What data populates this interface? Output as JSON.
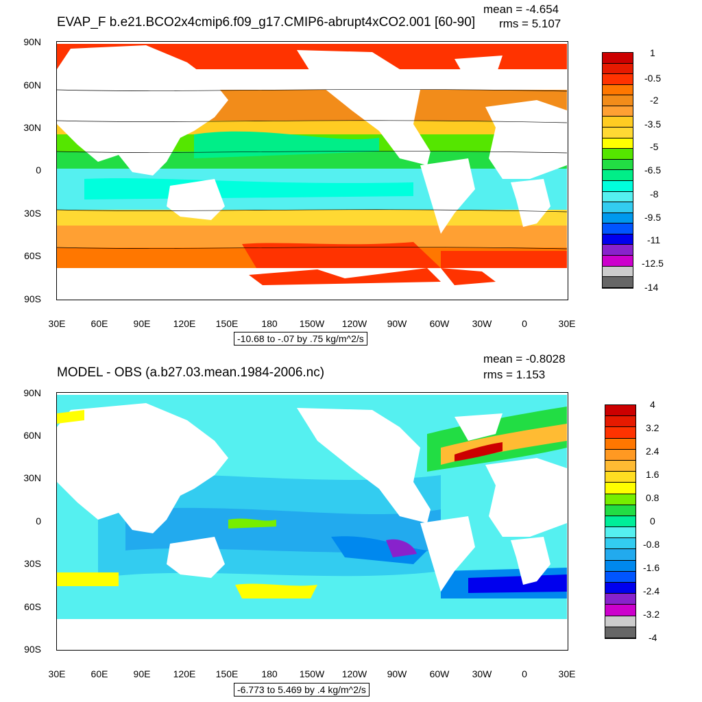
{
  "panels": [
    {
      "title": "EVAP_F b.e21.BCO2x4cmip6.f09_g17.CMIP6-abrupt4xCO2.001 [60-90]",
      "mean": "mean = -4.654",
      "rms": "rms = 5.107",
      "range_label": "-10.68 to -.07 by .75 kg/m^2/s",
      "y_labels": [
        "90N",
        "60N",
        "30N",
        "0",
        "30S",
        "60S",
        "90S"
      ],
      "x_labels": [
        "30E",
        "60E",
        "90E",
        "120E",
        "150E",
        "180",
        "150W",
        "120W",
        "90W",
        "60W",
        "30W",
        "0",
        "30E"
      ],
      "colorbar": {
        "labels": [
          "1",
          "-0.5",
          "-2",
          "-3.5",
          "-5",
          "-6.5",
          "-8",
          "-9.5",
          "-11",
          "-12.5",
          "-14"
        ],
        "colors": [
          "#cc0000",
          "#e61a00",
          "#ff3300",
          "#ff7700",
          "#f28c1a",
          "#ffa033",
          "#ffcc22",
          "#ffd933",
          "#ffff00",
          "#55e600",
          "#22dd44",
          "#00ee88",
          "#00ffdd",
          "#55f0f0",
          "#33ccf0",
          "#0099ee",
          "#0055ff",
          "#0000ee",
          "#8822cc",
          "#cc00cc",
          "#cccccc",
          "#666666"
        ]
      }
    },
    {
      "title": "MODEL - OBS (a.b27.03.mean.1984-2006.nc)",
      "mean": "mean = -0.8028",
      "rms": "rms = 1.153",
      "range_label": "-6.773 to 5.469 by .4 kg/m^2/s",
      "y_labels": [
        "90N",
        "60N",
        "30N",
        "0",
        "30S",
        "60S",
        "90S"
      ],
      "x_labels": [
        "30E",
        "60E",
        "90E",
        "120E",
        "150E",
        "180",
        "150W",
        "120W",
        "90W",
        "60W",
        "30W",
        "0",
        "30E"
      ],
      "colorbar": {
        "labels": [
          "4",
          "3.2",
          "2.4",
          "1.6",
          "0.8",
          "0",
          "-0.8",
          "-1.6",
          "-2.4",
          "-3.2",
          "-4"
        ],
        "colors": [
          "#cc0000",
          "#e61a00",
          "#ff3300",
          "#ff7700",
          "#ff9922",
          "#ffbb33",
          "#ffdd22",
          "#ffff00",
          "#77ee00",
          "#22dd44",
          "#00ee99",
          "#55f0f0",
          "#33ccf0",
          "#22aaee",
          "#0088ee",
          "#0055ff",
          "#0000ee",
          "#8822cc",
          "#cc00cc",
          "#cccccc",
          "#666666"
        ]
      }
    }
  ]
}
